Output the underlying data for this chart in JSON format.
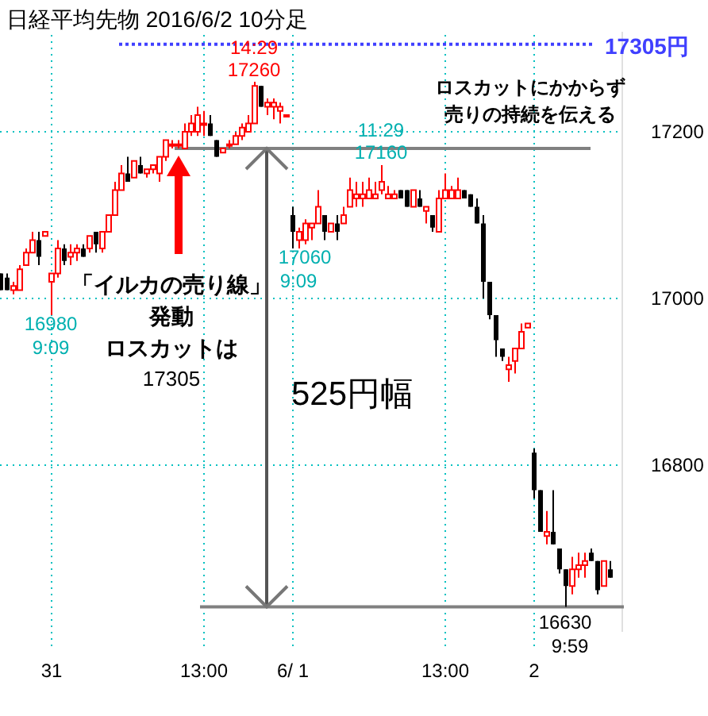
{
  "chart_data": {
    "type": "candlestick",
    "title": "日経平均先物  2016/6/2  10分足",
    "categories": [
      null,
      null,
      null,
      null,
      null,
      null,
      null,
      null,
      "31",
      null,
      null,
      null,
      null,
      null,
      null,
      null,
      null,
      null,
      null,
      null,
      null,
      null,
      null,
      null,
      null,
      null,
      null,
      null,
      null,
      null,
      null,
      null,
      "13:00",
      null,
      null,
      null,
      null,
      null,
      null,
      null,
      null,
      null,
      null,
      null,
      null,
      null,
      "6/ 1",
      null,
      null,
      null,
      null,
      null,
      null,
      null,
      null,
      null,
      null,
      null,
      null,
      null,
      null,
      null,
      null,
      null,
      null,
      null,
      null,
      null,
      null,
      null,
      "13:00",
      null,
      null,
      null,
      null,
      null,
      null,
      null,
      null,
      null,
      null,
      null,
      null,
      null,
      "2",
      null,
      null,
      null,
      null,
      null,
      null,
      null,
      null,
      null,
      null,
      null,
      null
    ],
    "ohlc": [
      [
        17030,
        17030,
        17010,
        17010
      ],
      [
        17025,
        17030,
        17010,
        17010
      ],
      [
        17010,
        17020,
        17005,
        17015
      ],
      [
        17010,
        17040,
        17010,
        17035
      ],
      [
        17040,
        17060,
        17040,
        17055
      ],
      [
        17055,
        17080,
        17055,
        17070
      ],
      [
        17070,
        17080,
        17040,
        17050
      ],
      [
        17075,
        17080,
        17075,
        17080
      ],
      [
        17020,
        17030,
        16980,
        17030
      ],
      [
        17030,
        17070,
        17025,
        17060
      ],
      [
        17060,
        17065,
        17040,
        17045
      ],
      [
        17050,
        17065,
        17040,
        17055
      ],
      [
        17055,
        17065,
        17045,
        17060
      ],
      [
        17060,
        17065,
        17050,
        17050
      ],
      [
        17060,
        17075,
        17055,
        17075
      ],
      [
        17080,
        17080,
        17055,
        17065
      ],
      [
        17060,
        17080,
        17055,
        17080
      ],
      [
        17080,
        17100,
        17080,
        17100
      ],
      [
        17100,
        17140,
        17100,
        17130
      ],
      [
        17130,
        17160,
        17130,
        17150
      ],
      [
        17150,
        17170,
        17140,
        17140
      ],
      [
        17145,
        17165,
        17145,
        17165
      ],
      [
        17160,
        17170,
        17150,
        17150
      ],
      [
        17150,
        17155,
        17145,
        17155
      ],
      [
        17155,
        17160,
        17150,
        17160
      ],
      [
        17150,
        17170,
        17140,
        17170
      ],
      [
        17170,
        17190,
        17165,
        17190
      ],
      [
        17185,
        17190,
        17180,
        17185
      ],
      [
        17185,
        17190,
        17180,
        17185
      ],
      [
        17180,
        17210,
        17180,
        17200
      ],
      [
        17200,
        17220,
        17195,
        17210
      ],
      [
        17200,
        17230,
        17195,
        17220
      ],
      [
        17210,
        17225,
        17195,
        17210
      ],
      [
        17210,
        17220,
        17195,
        17195
      ],
      [
        17190,
        17190,
        17170,
        17170
      ],
      [
        17175,
        17180,
        17175,
        17180
      ],
      [
        17185,
        17190,
        17180,
        17185
      ],
      [
        17185,
        17200,
        17185,
        17195
      ],
      [
        17195,
        17210,
        17190,
        17205
      ],
      [
        17200,
        17220,
        17200,
        17210
      ],
      [
        17210,
        17260,
        17210,
        17255
      ],
      [
        17255,
        17255,
        17230,
        17230
      ],
      [
        17230,
        17240,
        17220,
        17235
      ],
      [
        17230,
        17240,
        17215,
        17235
      ],
      [
        17225,
        17235,
        17210,
        17230
      ],
      [
        17220,
        17220,
        17220,
        17220
      ],
      [
        17100,
        17110,
        17060,
        17080
      ],
      [
        17070,
        17085,
        17060,
        17080
      ],
      [
        17070,
        17095,
        17065,
        17090
      ],
      [
        17085,
        17090,
        17070,
        17090
      ],
      [
        17090,
        17130,
        17090,
        17110
      ],
      [
        17100,
        17100,
        17070,
        17080
      ],
      [
        17080,
        17090,
        17080,
        17090
      ],
      [
        17090,
        17100,
        17070,
        17080
      ],
      [
        17090,
        17110,
        17090,
        17100
      ],
      [
        17110,
        17145,
        17110,
        17130
      ],
      [
        17120,
        17140,
        17110,
        17125
      ],
      [
        17120,
        17140,
        17110,
        17125
      ],
      [
        17120,
        17145,
        17120,
        17130
      ],
      [
        17120,
        17140,
        17120,
        17125
      ],
      [
        17130,
        17160,
        17125,
        17140
      ],
      [
        17120,
        17135,
        17120,
        17125
      ],
      [
        17120,
        17130,
        17120,
        17125
      ],
      [
        17130,
        17130,
        17120,
        17120
      ],
      [
        17130,
        17130,
        17110,
        17110
      ],
      [
        17110,
        17130,
        17110,
        17130
      ],
      [
        17120,
        17130,
        17110,
        17110
      ],
      [
        17105,
        17110,
        17090,
        17110
      ],
      [
        17100,
        17100,
        17080,
        17085
      ],
      [
        17080,
        17130,
        17080,
        17120
      ],
      [
        17120,
        17150,
        17120,
        17130
      ],
      [
        17120,
        17135,
        17120,
        17130
      ],
      [
        17120,
        17145,
        17120,
        17130
      ],
      [
        17130,
        17130,
        17120,
        17120
      ],
      [
        17125,
        17125,
        17110,
        17110
      ],
      [
        17110,
        17120,
        17090,
        17090
      ],
      [
        17090,
        17100,
        17000,
        17020
      ],
      [
        17020,
        17020,
        16975,
        16980
      ],
      [
        16980,
        16980,
        16930,
        16950
      ],
      [
        16940,
        16940,
        16925,
        16930
      ],
      [
        16915,
        16930,
        16900,
        16920
      ],
      [
        16925,
        16940,
        16910,
        16940
      ],
      [
        16940,
        16970,
        16940,
        16960
      ],
      [
        16965,
        16970,
        16965,
        16970
      ],
      [
        16815,
        16820,
        16760,
        16770
      ],
      [
        16770,
        16770,
        16720,
        16720
      ],
      [
        16715,
        16745,
        16705,
        16720
      ],
      [
        16720,
        16770,
        16705,
        16705
      ],
      [
        16700,
        16700,
        16670,
        16675
      ],
      [
        16675,
        16675,
        16630,
        16655
      ],
      [
        16655,
        16690,
        16645,
        16675
      ],
      [
        16675,
        16695,
        16665,
        16680
      ],
      [
        16680,
        16695,
        16665,
        16685
      ],
      [
        16695,
        16700,
        16685,
        16685
      ],
      [
        16685,
        16685,
        16645,
        16650
      ],
      [
        16655,
        16685,
        16655,
        16685
      ],
      [
        16675,
        16685,
        16665,
        16665
      ]
    ],
    "ylim": [
      16600,
      17320
    ],
    "yticks": [
      16800,
      17000,
      17200
    ],
    "grid": true,
    "ref_lines": [
      {
        "axis": "y",
        "value": 17305,
        "label": "17305円",
        "color": "#4040ff",
        "line_style": "dotted"
      },
      {
        "axis": "y",
        "value": 17180,
        "color": "#808080",
        "line_style": "solid"
      },
      {
        "axis": "y",
        "value": 16630,
        "color": "#808080",
        "line_style": "solid"
      }
    ],
    "annotations": [
      "14:29",
      "17260",
      "11:29",
      "17160",
      "17060",
      "9:09",
      "16980",
      "9:09",
      "16630",
      "9:59",
      "「イルカの売り線」",
      "発動",
      "ロスカットは",
      "17305",
      "525円幅",
      "ロスカットにかからず",
      "売りの持続を伝える"
    ]
  }
}
